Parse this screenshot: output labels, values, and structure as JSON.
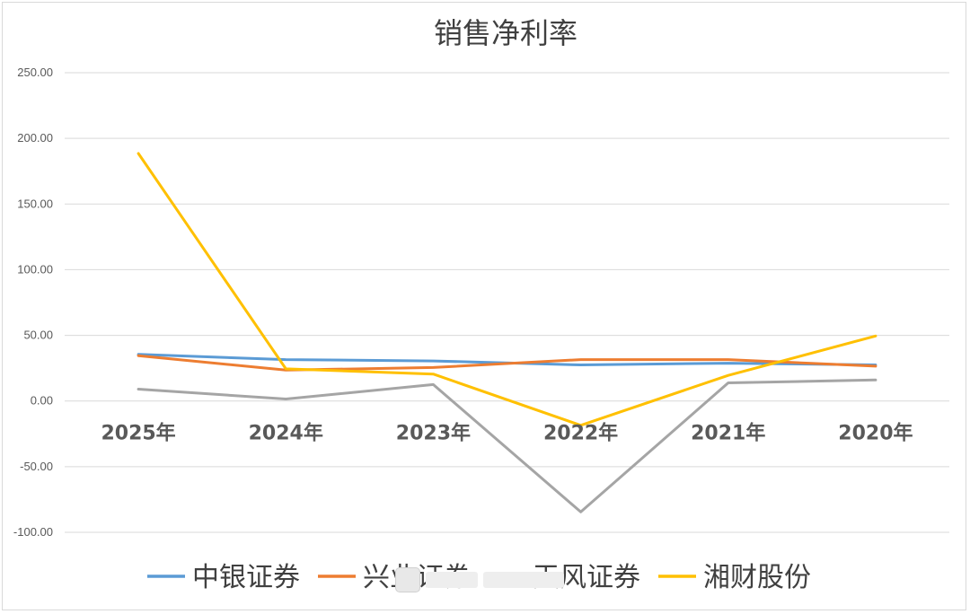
{
  "chart_data": {
    "type": "line",
    "title": "销售净利率",
    "categories": [
      "2025年",
      "2024年",
      "2023年",
      "2022年",
      "2021年",
      "2020年"
    ],
    "ylim": [
      -100,
      250
    ],
    "yticks": [
      "250.00",
      "200.00",
      "150.00",
      "100.00",
      "50.00",
      "0.00",
      "-50.00",
      "-100.00"
    ],
    "ytick_values": [
      250,
      200,
      150,
      100,
      50,
      0,
      -50,
      -100
    ],
    "grid": true,
    "legend_position": "bottom",
    "series": [
      {
        "name": "中银证券",
        "color": "#5b9bd5",
        "values": [
          35.5,
          31.5,
          30.5,
          27.5,
          28.8,
          27.5
        ]
      },
      {
        "name": "兴业证券",
        "color": "#ed7d31",
        "values": [
          34.5,
          23.5,
          25.5,
          31.5,
          31.5,
          26.5
        ]
      },
      {
        "name": "天风证券",
        "color": "#a5a5a5",
        "values": [
          9.0,
          1.5,
          12.5,
          -84.5,
          13.8,
          16.0
        ]
      },
      {
        "name": "湘财股份",
        "color": "#ffc000",
        "values": [
          188.5,
          24.5,
          20.5,
          -18.5,
          19.5,
          49.5
        ]
      }
    ]
  }
}
